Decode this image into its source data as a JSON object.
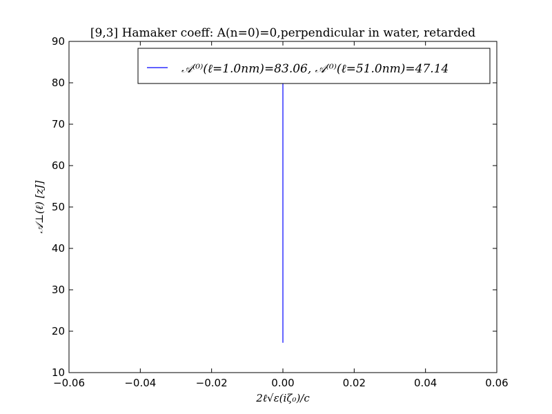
{
  "chart_data": {
    "type": "line",
    "title": "[9,3]  Hamaker coeff: A(n=0)=0,perpendicular in water, retarded",
    "xlabel": "2ℓ√ε(iζ₀)/c",
    "ylabel": "𝒜⊥(ℓ)   [zJ]",
    "xlim": [
      -0.06,
      0.06
    ],
    "ylim": [
      10,
      90
    ],
    "x_ticks": [
      -0.06,
      -0.04,
      -0.02,
      0.0,
      0.02,
      0.04,
      0.06
    ],
    "x_tick_labels": [
      "−0.06",
      "−0.04",
      "−0.02",
      "0.00",
      "0.02",
      "0.04",
      "0.06"
    ],
    "y_ticks": [
      10,
      20,
      30,
      40,
      50,
      60,
      70,
      80,
      90
    ],
    "y_tick_labels": [
      "10",
      "20",
      "30",
      "40",
      "50",
      "60",
      "70",
      "80",
      "90"
    ],
    "grid": false,
    "legend_position": "top-right",
    "series": [
      {
        "name": "𝒜⁽⁰⁾(ℓ=1.0nm)=83.06,    𝒜⁽⁰⁾(ℓ=51.0nm)=47.14",
        "color": "#0000ff",
        "x": [
          0.0,
          0.0
        ],
        "y": [
          17.2,
          83.06
        ]
      }
    ]
  }
}
